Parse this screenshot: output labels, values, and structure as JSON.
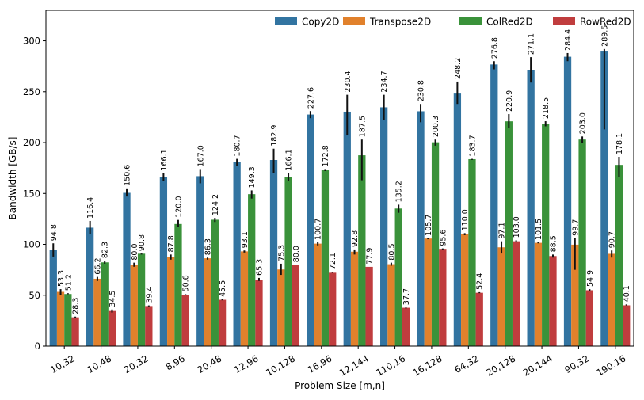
{
  "chart_data": {
    "type": "bar",
    "xlabel": "Problem Size [m,n]",
    "ylabel": "Bandwidth [GB/s]",
    "ylim": [
      0,
      330
    ],
    "yticks": [
      0,
      50,
      100,
      150,
      200,
      250,
      300
    ],
    "legend_position": "top-right",
    "categories": [
      "10,32",
      "10,48",
      "20,32",
      "8,96",
      "20,48",
      "12,96",
      "10,128",
      "16,96",
      "12,144",
      "110,16",
      "16,128",
      "64,32",
      "20,128",
      "20,144",
      "90,32",
      "190,16"
    ],
    "series": [
      {
        "name": "Copy2D",
        "color": "#3274a1",
        "values": [
          94.8,
          116.4,
          150.6,
          166.1,
          167.0,
          180.7,
          182.9,
          227.6,
          230.4,
          234.7,
          230.8,
          248.2,
          276.8,
          271.1,
          284.4,
          289.5
        ],
        "labels": [
          "94.8",
          "116.4",
          "150.6",
          "166.1",
          "167.0",
          "180.7",
          "182.9",
          "227.6",
          "230.4",
          "234.7",
          "230.8",
          "248.2",
          "276.8",
          "271.1",
          "284.4",
          "289.5"
        ],
        "err_low": [
          88,
          110,
          147,
          162,
          160,
          177,
          170,
          224,
          207,
          222,
          220,
          238,
          272,
          259,
          280,
          213
        ],
        "err_high": [
          101,
          123,
          155,
          170,
          174,
          184,
          194,
          231,
          247,
          247,
          238,
          260,
          280,
          284,
          288,
          292
        ]
      },
      {
        "name": "Transpose2D",
        "color": "#e1812c",
        "values": [
          53.3,
          66.2,
          80.0,
          87.8,
          86.3,
          93.1,
          75.3,
          100.7,
          92.8,
          80.5,
          105.7,
          110.0,
          97.1,
          101.5,
          99.7,
          90.7
        ],
        "labels": [
          "53.3",
          "66.2",
          "80.0",
          "87.8",
          "86.3",
          "93.1",
          "75.3",
          "100.7",
          "92.8",
          "80.5",
          "105.7",
          "110.0",
          "97.1",
          "101.5",
          "99.7",
          "90.7"
        ],
        "err_low": [
          50,
          64,
          78,
          85,
          85,
          92,
          70,
          99,
          90,
          79,
          105,
          109,
          91,
          101,
          75,
          87
        ],
        "err_high": [
          56,
          68,
          82,
          90,
          87,
          94,
          81,
          102,
          95,
          82,
          106,
          111,
          103,
          102,
          106,
          94
        ]
      },
      {
        "name": "ColRed2D",
        "color": "#3a923a",
        "values": [
          51.2,
          82.3,
          90.8,
          120.0,
          124.2,
          149.3,
          166.1,
          172.8,
          187.5,
          135.2,
          200.3,
          183.7,
          220.9,
          218.5,
          203.0,
          178.1
        ],
        "labels": [
          "51.2",
          "82.3",
          "90.8",
          "120.0",
          "124.2",
          "149.3",
          "166.1",
          "172.8",
          "187.5",
          "135.2",
          "200.3",
          "183.7",
          "220.9",
          "218.5",
          "203.0",
          "178.1"
        ],
        "err_low": [
          51,
          81,
          90,
          117,
          122,
          145,
          162,
          172,
          163,
          131,
          197,
          183,
          214,
          216,
          200,
          166
        ],
        "err_high": [
          52,
          84,
          91,
          124,
          126,
          153,
          170,
          174,
          203,
          139,
          203,
          184,
          228,
          221,
          206,
          186
        ]
      },
      {
        "name": "RowRed2D",
        "color": "#c03d3e",
        "values": [
          28.3,
          34.5,
          39.4,
          50.6,
          45.5,
          65.3,
          80.0,
          72.1,
          77.9,
          37.7,
          95.6,
          52.4,
          103.0,
          88.5,
          54.9,
          40.1
        ],
        "labels": [
          "28.3",
          "34.5",
          "39.4",
          "50.6",
          "45.5",
          "65.3",
          "80.0",
          "72.1",
          "77.9",
          "37.7",
          "95.6",
          "52.4",
          "103.0",
          "88.5",
          "54.9",
          "40.1"
        ],
        "err_low": [
          28,
          33,
          39,
          50,
          45,
          64,
          80,
          72,
          78,
          37,
          95,
          52,
          102,
          87,
          54,
          40
        ],
        "err_high": [
          29,
          36,
          40,
          51,
          46,
          67,
          80,
          73,
          78,
          38,
          96,
          53,
          104,
          90,
          56,
          41
        ]
      }
    ]
  }
}
